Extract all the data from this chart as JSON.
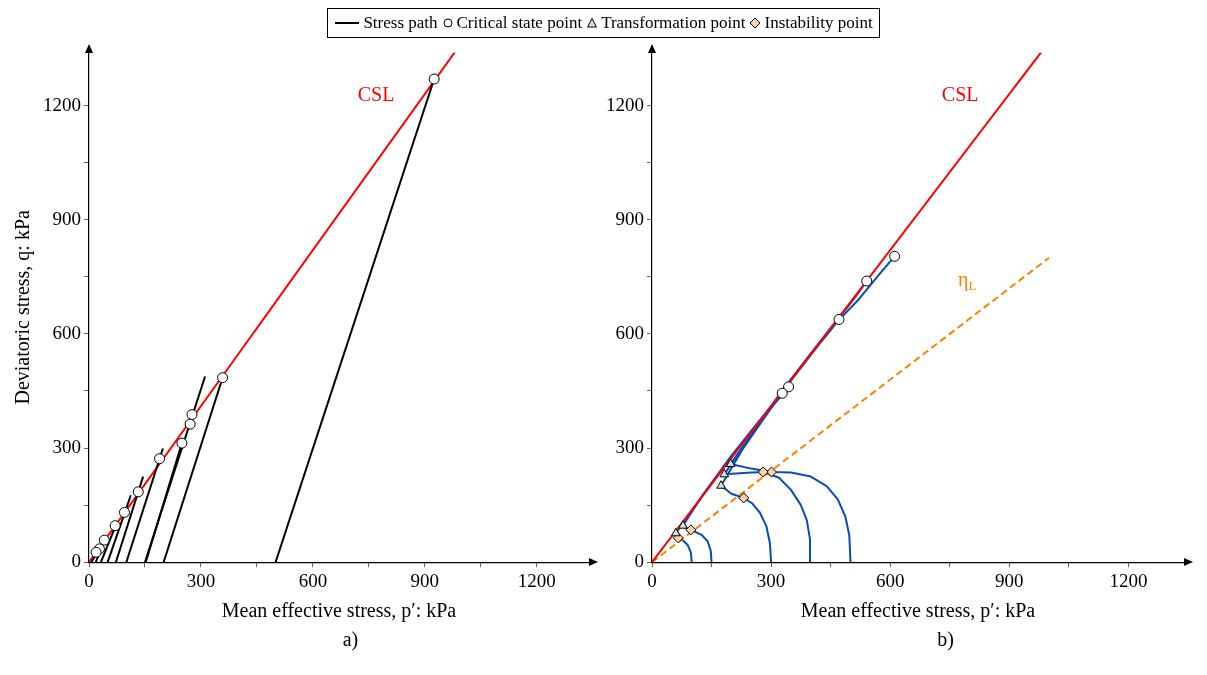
{
  "chart_data": [
    {
      "type": "line",
      "xlabel": "Mean effective stress, p′: kPa",
      "ylabel": "Deviatoric stress, q: kPa",
      "xlim": [
        0,
        1340
      ],
      "ylim": [
        0,
        1340
      ],
      "xticks": [
        0,
        {
          "value": 150,
          "label": null
        },
        300,
        {
          "value": 450,
          "label": null
        },
        600,
        {
          "value": 750,
          "label": null
        },
        900,
        {
          "value": 1050,
          "label": null
        },
        1200
      ],
      "yticks": [
        0,
        {
          "value": 150,
          "label": null
        },
        300,
        {
          "value": 450,
          "label": null
        },
        600,
        {
          "value": 750,
          "label": null
        },
        900,
        {
          "value": 1050,
          "label": null
        },
        1200
      ],
      "grid": false,
      "legend": "top",
      "series": [
        {
          "name": "Stress path",
          "color": "#000000",
          "x": [
            500,
            925
          ],
          "values": [
            0,
            1270
          ]
        },
        {
          "color": "#000000",
          "x": [
            200,
            358
          ],
          "values": [
            0,
            485
          ]
        },
        {
          "color": "#000000",
          "x": [
            150,
            311
          ],
          "values": [
            0,
            488
          ]
        },
        {
          "color": "#000000",
          "x": [
            152,
            249
          ],
          "values": [
            0,
            313
          ]
        },
        {
          "color": "#000000",
          "x": [
            100,
            198
          ],
          "values": [
            0,
            299
          ]
        },
        {
          "color": "#000000",
          "x": [
            72,
            145
          ],
          "values": [
            0,
            225
          ]
        },
        {
          "color": "#000000",
          "x": [
            50,
            112
          ],
          "values": [
            0,
            176
          ]
        },
        {
          "color": "#000000",
          "x": [
            32,
            75
          ],
          "values": [
            0,
            105
          ]
        },
        {
          "color": "#000000",
          "x": [
            18,
            45
          ],
          "values": [
            0,
            62
          ]
        },
        {
          "color": "#000000",
          "x": [
            6,
            28
          ],
          "values": [
            0,
            35
          ]
        },
        {
          "name": "CSL",
          "color": "#ff0000",
          "x": [
            0,
            980
          ],
          "values": [
            0,
            1340
          ]
        },
        {
          "type": "scatter",
          "name": "Critical state point",
          "color": "#ffffff",
          "marker": "circle",
          "x": [
            925,
            358,
            276,
            271,
            249,
            189,
            132,
            95,
            70,
            41,
            28,
            19
          ],
          "values": [
            1270,
            485,
            388,
            363,
            313,
            272,
            185,
            131,
            96,
            58,
            35,
            26
          ]
        }
      ],
      "annotations": [
        "a)"
      ]
    },
    {
      "type": "line",
      "xlabel": "Mean effective stress, p′: kPa",
      "xlim": [
        0,
        1340
      ],
      "ylim": [
        0,
        1340
      ],
      "xticks": [
        0,
        {
          "value": 150,
          "label": null
        },
        300,
        {
          "value": 450,
          "label": null
        },
        600,
        {
          "value": 750,
          "label": null
        },
        900,
        {
          "value": 1050,
          "label": null
        },
        1200
      ],
      "yticks": [
        0,
        {
          "value": 150,
          "label": null
        },
        300,
        {
          "value": 450,
          "label": null
        },
        600,
        {
          "value": 750,
          "label": null
        },
        900,
        {
          "value": 1050,
          "label": null
        },
        1200
      ],
      "grid": false,
      "legend": "top",
      "series": [
        {
          "name": "CSL",
          "color": "#ff0000",
          "x": [
            0,
            980
          ],
          "values": [
            0,
            1340
          ]
        },
        {
          "name": "η$_{L}$",
          "color": "#ff8000",
          "line_style": "dashed",
          "x": [
            0,
            1000
          ],
          "values": [
            0,
            800
          ]
        },
        {
          "color": "#0a4db0",
          "x": [
            500,
            497,
            487,
            468,
            440,
            400,
            350,
            301,
            250,
            198,
            260,
            330,
            400,
            460,
            520,
            575,
            611
          ],
          "values": [
            0,
            70,
            120,
            165,
            200,
            225,
            236,
            237,
            246,
            258,
            350,
            450,
            545,
            625,
            690,
            760,
            804
          ]
        },
        {
          "color": "#0a4db0",
          "x": [
            400,
            398,
            390,
            375,
            350,
            320,
            280,
            240,
            182,
            250,
            320,
            390,
            450,
            500,
            541
          ],
          "values": [
            0,
            60,
            110,
            150,
            190,
            222,
            237,
            235,
            231,
            335,
            440,
            535,
            615,
            680,
            739
          ]
        },
        {
          "color": "#0a4db0",
          "x": [
            300,
            297,
            288,
            272,
            252,
            231,
            200,
            174,
            230,
            290,
            350,
            410,
            450,
            471
          ],
          "values": [
            0,
            50,
            95,
            130,
            155,
            169,
            180,
            201,
            300,
            390,
            480,
            560,
            610,
            638
          ]
        },
        {
          "color": "#0a4db0",
          "x": [
            150,
            148,
            140,
            125,
            98,
            85,
            78,
            130,
            200,
            270,
            320,
            344
          ],
          "values": [
            0,
            30,
            55,
            72,
            85,
            90,
            96,
            180,
            280,
            370,
            430,
            461
          ]
        },
        {
          "color": "#0a4db0",
          "x": [
            100,
            98,
            90,
            78,
            66,
            62,
            60,
            110,
            180,
            250,
            300,
            328
          ],
          "values": [
            0,
            25,
            45,
            57,
            64,
            70,
            76,
            150,
            250,
            345,
            410,
            444
          ]
        },
        {
          "type": "scatter",
          "color": "#ffffff",
          "marker": "circle",
          "x": [
            611,
            541,
            471,
            344,
            328
          ],
          "values": [
            804,
            739,
            638,
            461,
            444
          ]
        },
        {
          "type": "scatter",
          "name": "Transformation point",
          "color": "#cfe3cf",
          "marker": "triangle",
          "x": [
            198,
            182,
            174,
            78,
            60
          ],
          "values": [
            258,
            231,
            201,
            96,
            76
          ]
        },
        {
          "type": "scatter",
          "name": "Instability point",
          "color": "#f9d2ac",
          "marker": "diamond",
          "x": [
            301,
            280,
            231,
            98,
            66
          ],
          "values": [
            237,
            237,
            169,
            85,
            64
          ]
        }
      ],
      "annotations": [
        "b)"
      ]
    }
  ]
}
